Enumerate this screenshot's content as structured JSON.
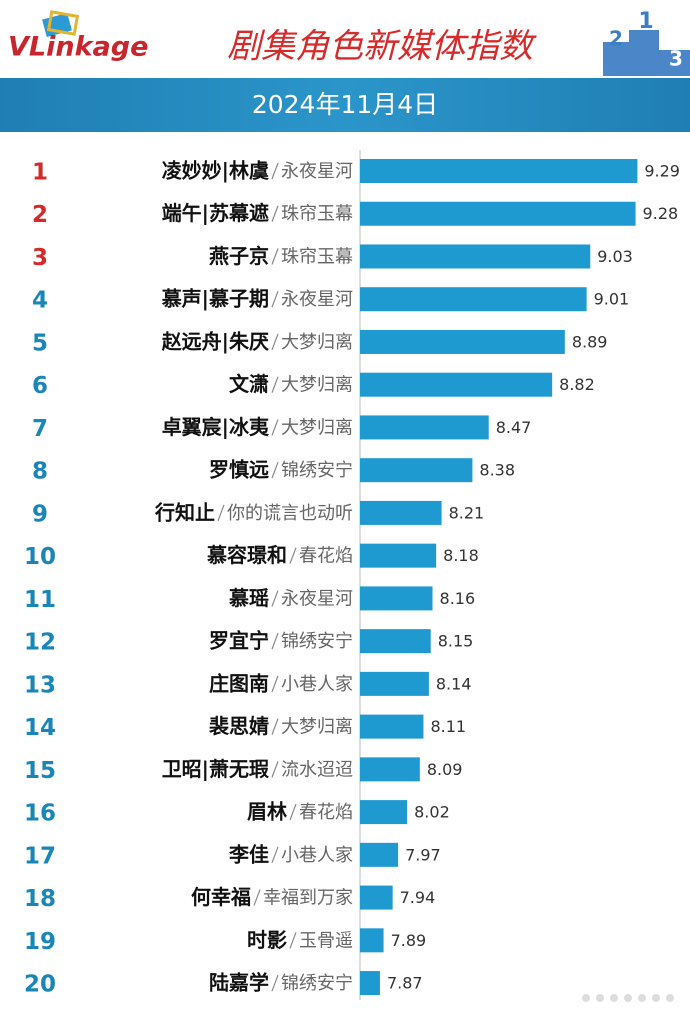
{
  "header": {
    "logo": "VLinkage",
    "title": "剧集角色新媒体指数",
    "date": "2024年11月4日",
    "podium": [
      "2",
      "1",
      "3"
    ]
  },
  "chart_data": {
    "type": "bar",
    "orientation": "horizontal",
    "ranks": [
      1,
      2,
      3,
      4,
      5,
      6,
      7,
      8,
      9,
      10,
      11,
      12,
      13,
      14,
      15,
      16,
      17,
      18,
      19,
      20
    ],
    "rank_colors": [
      "#d42a2a",
      "#d42a2a",
      "#d42a2a",
      "#1a86b8",
      "#1a86b8",
      "#1a86b8",
      "#1a86b8",
      "#1a86b8",
      "#1a86b8",
      "#1a86b8",
      "#1a86b8",
      "#1a86b8",
      "#1a86b8",
      "#1a86b8",
      "#1a86b8",
      "#1a86b8",
      "#1a86b8",
      "#1a86b8",
      "#1a86b8",
      "#1a86b8"
    ],
    "categories": [
      "凌妙妙|林虞",
      "端午|苏幕遮",
      "燕子京",
      "慕声|慕子期",
      "赵远舟|朱厌",
      "文潇",
      "卓翼宸|冰夷",
      "罗慎远",
      "行知止",
      "慕容璟和",
      "慕瑶",
      "罗宜宁",
      "庄图南",
      "裴思婧",
      "卫昭|萧无瑕",
      "眉林",
      "李佳",
      "何幸福",
      "时影",
      "陆嘉学"
    ],
    "dramas": [
      "永夜星河",
      "珠帘玉幕",
      "珠帘玉幕",
      "永夜星河",
      "大梦归离",
      "大梦归离",
      "大梦归离",
      "锦绣安宁",
      "你的谎言也动听",
      "春花焰",
      "永夜星河",
      "锦绣安宁",
      "小巷人家",
      "大梦归离",
      "流水迢迢",
      "春花焰",
      "小巷人家",
      "幸福到万家",
      "玉骨遥",
      "锦绣安宁"
    ],
    "values": [
      9.29,
      9.28,
      9.03,
      9.01,
      8.89,
      8.82,
      8.47,
      8.38,
      8.21,
      8.18,
      8.16,
      8.15,
      8.14,
      8.11,
      8.09,
      8.02,
      7.97,
      7.94,
      7.89,
      7.87
    ],
    "color": "#1f9ad0",
    "xlim": [
      7.76,
      9.31
    ]
  }
}
